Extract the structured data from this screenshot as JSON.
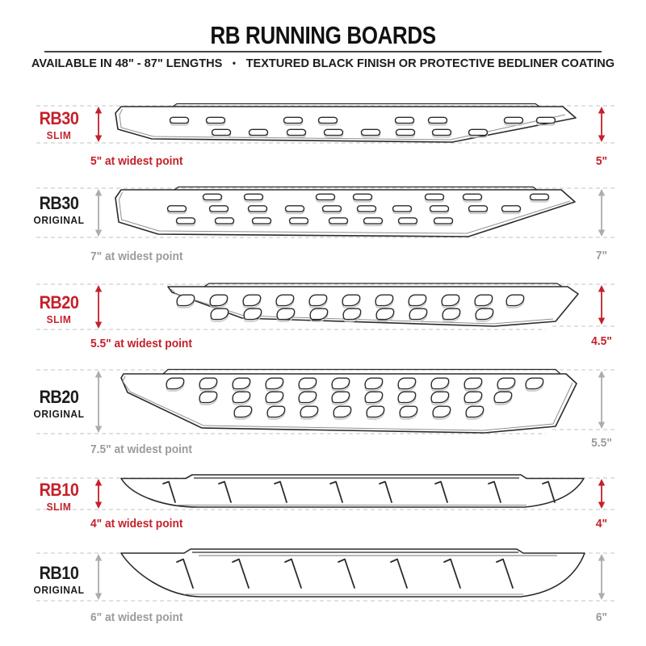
{
  "header": {
    "title": "RB RUNNING BOARDS",
    "subtitle_left": "AVAILABLE IN 48\" - 87\" LENGTHS",
    "subtitle_separator": "•",
    "subtitle_right": "TEXTURED BLACK FINISH OR PROTECTIVE BEDLINER COATING"
  },
  "colors": {
    "accent_red": "#c4212a",
    "gray_text": "#9b9b9b",
    "gray_arrow": "#acacac",
    "ink": "#2b2b2b",
    "ink_soft": "#8f8f8f",
    "dash": "#cfcfcf",
    "model_dark": "#1c1c1c",
    "slot_shadow": "#c4c4c4",
    "tread_gray": "#b8b8b8"
  },
  "boards": [
    {
      "model": "RB30",
      "variant": "SLIM",
      "accent": "red",
      "widest_label": "5\" at widest point",
      "side_label": "5\"",
      "hole_style": "oval-slots"
    },
    {
      "model": "RB30",
      "variant": "ORIGINAL",
      "accent": "gray",
      "widest_label": "7\" at widest point",
      "side_label": "7\"",
      "hole_style": "oval-slots"
    },
    {
      "model": "RB20",
      "variant": "SLIM",
      "accent": "red",
      "widest_label": "5.5\" at widest point",
      "side_label": "4.5\"",
      "hole_style": "d-slots"
    },
    {
      "model": "RB20",
      "variant": "ORIGINAL",
      "accent": "gray",
      "widest_label": "7.5\" at widest point",
      "side_label": "5.5\"",
      "hole_style": "d-slots"
    },
    {
      "model": "RB10",
      "variant": "SLIM",
      "accent": "red",
      "widest_label": "4\" at widest point",
      "side_label": "4\"",
      "hole_style": "slash-marks"
    },
    {
      "model": "RB10",
      "variant": "ORIGINAL",
      "accent": "gray",
      "widest_label": "6\" at widest point",
      "side_label": "6\"",
      "hole_style": "slash-marks"
    }
  ]
}
